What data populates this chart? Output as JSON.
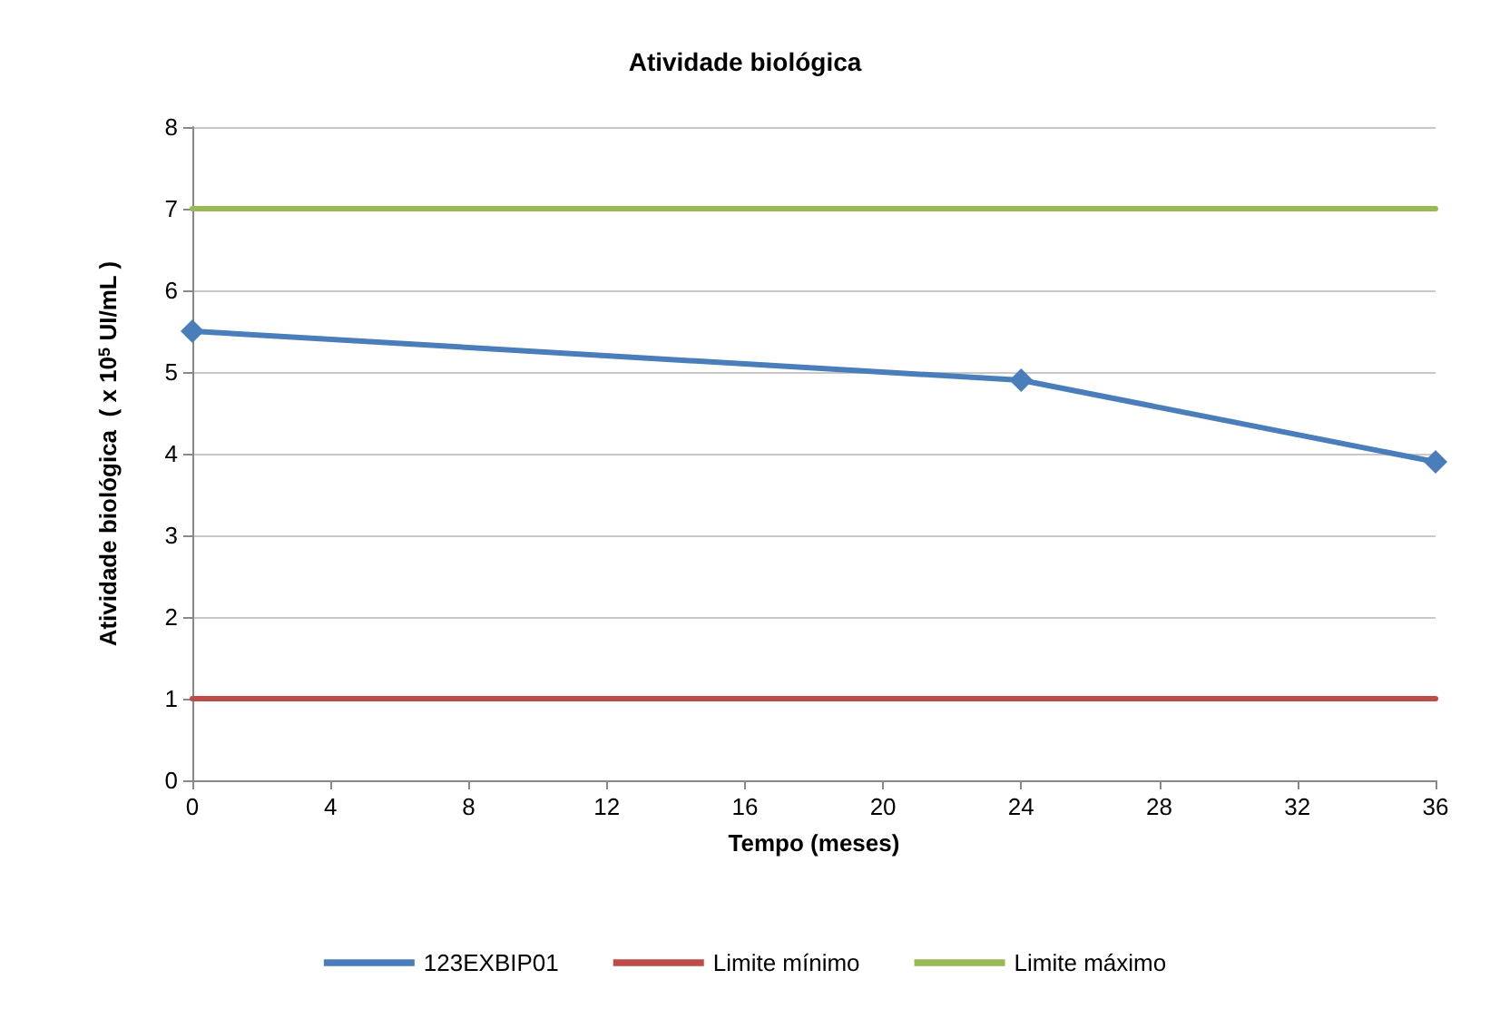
{
  "chart_data": {
    "type": "line",
    "title": "Atividade biológica",
    "xlabel": "Tempo (meses)",
    "ylabel": "Atividade biológica  ( x 10$^{5}$ UI/mL )",
    "x": [
      0,
      24,
      36
    ],
    "series": [
      {
        "name": "123EXBIP01",
        "color": "#4a7ebb",
        "values": [
          5.5,
          4.9,
          3.9
        ],
        "marker": "diamond"
      },
      {
        "name": "Limite mínimo",
        "color": "#be4b48",
        "values": [
          1,
          1,
          1
        ],
        "marker": "none"
      },
      {
        "name": "Limite máximo",
        "color": "#98b954",
        "values": [
          7,
          7,
          7
        ],
        "marker": "none"
      }
    ],
    "xlim": [
      0,
      36
    ],
    "xticks": [
      0,
      4,
      8,
      12,
      16,
      20,
      24,
      28,
      32,
      36
    ],
    "ylim": [
      0,
      8
    ],
    "yticks": [
      0,
      1,
      2,
      3,
      4,
      5,
      6,
      7,
      8
    ],
    "grid": "y",
    "legend": "bottom"
  }
}
